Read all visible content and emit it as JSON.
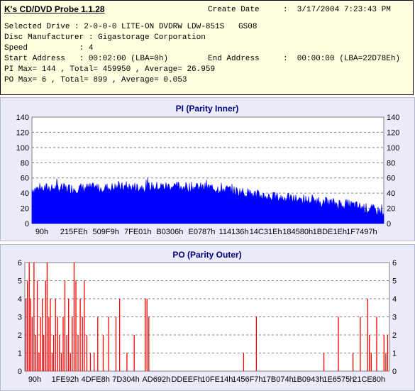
{
  "info": {
    "app_title": "K's CD/DVD Probe 1.1.28",
    "create_date_label": "Create Date",
    "create_date_value": ":  3/17/2004 7:23:43 PM",
    "drive_line": "Selected Drive : 2-0-0-0 LITE-ON DVDRW LDW-851S   GS08",
    "manufacturer_line": "Disc Manufacturer : Gigastorage Corporation",
    "speed_line": "Speed           : 4",
    "start_line": "Start Address   : 00:02:00 (LBA=0h)",
    "end_label": "End Address",
    "end_value": ":  00:00:00 (LBA=22D78Eh)",
    "pi_line": "PI Max= 144 , Total= 459950 , Average= 26.959",
    "po_line": "PO Max= 6 , Total= 899 , Average= 0.053"
  },
  "colors": {
    "pi_fill": "#0000ff",
    "po_bar": "#ff0000",
    "panel_bg": "#ebebf9",
    "plot_bg": "#ffffff",
    "title": "#000080",
    "info_bg": "#ffffe0"
  },
  "chart_data": [
    {
      "type": "area",
      "title": "PI (Parity Inner)",
      "ylim": [
        0,
        140
      ],
      "y_ticks": [
        0,
        20,
        40,
        60,
        80,
        100,
        120,
        140
      ],
      "x_tick_labels": [
        "90h",
        "215FEh",
        "509F9h",
        "7FE01h",
        "B0306h",
        "E0787h",
        "114136h",
        "14C31Eh",
        "184580h",
        "1BDE1Eh",
        "1F7497h"
      ],
      "grid": true,
      "series_profile": {
        "x": [
          0,
          0.05,
          0.1,
          0.2,
          0.3,
          0.4,
          0.45,
          0.5,
          0.55,
          0.6,
          0.65,
          0.7,
          0.75,
          0.8,
          0.85,
          0.9,
          0.95,
          1.0
        ],
        "y": [
          45,
          47,
          46,
          47,
          48,
          49,
          48,
          47,
          45,
          41,
          37,
          34,
          32,
          30,
          27,
          25,
          20,
          15
        ]
      }
    },
    {
      "type": "bar",
      "title": "PO (Parity Outer)",
      "ylim": [
        0,
        6
      ],
      "y_ticks": [
        0,
        1,
        2,
        3,
        4,
        5,
        6
      ],
      "x_tick_labels": [
        "90h",
        "1FE92h",
        "4DFE8h",
        "7D304h",
        "AD692h",
        "DDEEFh",
        "10FE14h",
        "1456F7h",
        "17B074h",
        "1B0943h",
        "1E6575h",
        "21CE80h"
      ],
      "grid": true,
      "bars": [
        [
          0.003,
          4
        ],
        [
          0.007,
          5
        ],
        [
          0.012,
          6
        ],
        [
          0.016,
          4
        ],
        [
          0.02,
          3
        ],
        [
          0.025,
          6
        ],
        [
          0.03,
          2
        ],
        [
          0.034,
          5
        ],
        [
          0.039,
          1
        ],
        [
          0.043,
          3
        ],
        [
          0.048,
          4
        ],
        [
          0.052,
          2
        ],
        [
          0.057,
          5
        ],
        [
          0.061,
          6
        ],
        [
          0.066,
          3
        ],
        [
          0.07,
          4
        ],
        [
          0.075,
          1
        ],
        [
          0.079,
          2
        ],
        [
          0.084,
          4
        ],
        [
          0.09,
          3
        ],
        [
          0.095,
          2
        ],
        [
          0.1,
          1
        ],
        [
          0.105,
          3
        ],
        [
          0.11,
          5
        ],
        [
          0.115,
          2
        ],
        [
          0.12,
          4
        ],
        [
          0.125,
          1
        ],
        [
          0.13,
          3
        ],
        [
          0.135,
          6
        ],
        [
          0.14,
          5
        ],
        [
          0.146,
          2
        ],
        [
          0.152,
          4
        ],
        [
          0.158,
          3
        ],
        [
          0.163,
          5
        ],
        [
          0.17,
          2
        ],
        [
          0.18,
          1
        ],
        [
          0.19,
          1
        ],
        [
          0.2,
          3
        ],
        [
          0.215,
          2
        ],
        [
          0.23,
          3
        ],
        [
          0.25,
          3
        ],
        [
          0.26,
          4
        ],
        [
          0.28,
          1
        ],
        [
          0.3,
          2
        ],
        [
          0.33,
          4
        ],
        [
          0.335,
          4
        ],
        [
          0.34,
          3
        ],
        [
          0.6,
          1
        ],
        [
          0.635,
          3
        ],
        [
          0.82,
          1
        ],
        [
          0.86,
          3
        ],
        [
          0.9,
          1
        ],
        [
          0.92,
          3
        ],
        [
          0.94,
          4
        ],
        [
          0.945,
          2
        ],
        [
          0.95,
          1
        ],
        [
          0.965,
          3
        ],
        [
          0.985,
          2
        ],
        [
          0.99,
          1
        ],
        [
          0.995,
          2
        ]
      ]
    }
  ]
}
